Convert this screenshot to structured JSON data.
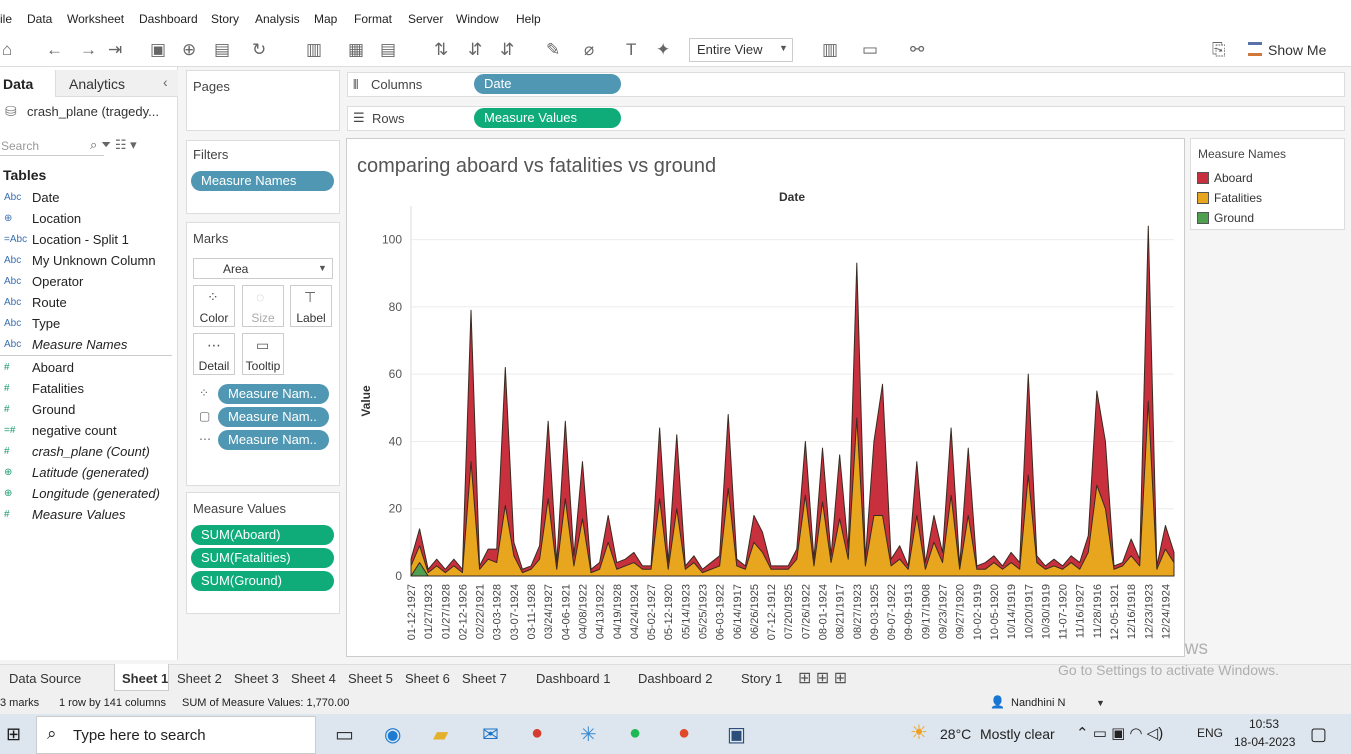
{
  "menu": [
    "ile",
    "Data",
    "Worksheet",
    "Dashboard",
    "Story",
    "Analysis",
    "Map",
    "Format",
    "Server",
    "Window",
    "Help"
  ],
  "toolbar": {
    "view": "Entire View",
    "show_me": "Show Me"
  },
  "data_pane": {
    "tabs": [
      "Data",
      "Analytics"
    ],
    "source": "crash_plane (tragedy...",
    "search": "Search",
    "tables_heading": "Tables",
    "fields": [
      {
        "icon": "Abc",
        "name": "Date"
      },
      {
        "icon": "⊕",
        "name": "Location"
      },
      {
        "icon": "=Abc",
        "name": "Location - Split 1"
      },
      {
        "icon": "Abc",
        "name": "My Unknown Column"
      },
      {
        "icon": "Abc",
        "name": "Operator"
      },
      {
        "icon": "Abc",
        "name": "Route"
      },
      {
        "icon": "Abc",
        "name": "Type"
      },
      {
        "icon": "Abc",
        "name": "Measure Names",
        "italic": true
      },
      {
        "icon": "#",
        "name": "Aboard"
      },
      {
        "icon": "#",
        "name": "Fatalities"
      },
      {
        "icon": "#",
        "name": "Ground"
      },
      {
        "icon": "=#",
        "name": "negative count"
      },
      {
        "icon": "#",
        "name": "crash_plane (Count)",
        "italic": true
      },
      {
        "icon": "⊕",
        "name": "Latitude (generated)",
        "italic": true
      },
      {
        "icon": "⊕",
        "name": "Longitude (generated)",
        "italic": true
      },
      {
        "icon": "#",
        "name": "Measure Values",
        "italic": true
      }
    ]
  },
  "shelves": {
    "pages": "Pages",
    "columns": "Columns",
    "rows": "Rows",
    "columns_pill": "Date",
    "rows_pill": "Measure Values",
    "filters": "Filters",
    "filter_pill": "Measure Names",
    "marks": "Marks",
    "mark_type": "Area",
    "mark_buttons": [
      "Color",
      "Size",
      "Label",
      "Detail",
      "Tooltip"
    ],
    "mark_pills": [
      "Measure Nam..",
      "Measure Nam..",
      "Measure Nam.."
    ],
    "measure_values": "Measure Values",
    "measure_pills": [
      "SUM(Aboard)",
      "SUM(Fatalities)",
      "SUM(Ground)"
    ]
  },
  "legend": {
    "title": "Measure Names"
  },
  "sheet_tabs": [
    "Data Source",
    "Sheet 1",
    "Sheet 2",
    "Sheet 3",
    "Sheet 4",
    "Sheet 5",
    "Sheet 6",
    "Sheet 7",
    "Dashboard 1",
    "Dashboard 2",
    "Story 1"
  ],
  "status": {
    "marks": "3 marks",
    "size": "1 row by 141 columns",
    "sum": "SUM of Measure Values: 1,770.00",
    "user": "Nandhini N"
  },
  "watermark": {
    "title": "Activate Windows",
    "text": "Go to Settings to activate Windows."
  },
  "taskbar": {
    "search": "Type here to search",
    "temp": "28°C",
    "weather": "Mostly clear",
    "lang": "ENG",
    "time": "10:53",
    "date": "18-04-2023"
  },
  "chart_data": {
    "type": "area",
    "title": "comparing aboard vs fatalities vs ground",
    "x_label": "Date",
    "y_label": "Value",
    "categories": [
      "01-12-1927",
      null,
      "01/27/1923",
      null,
      "01/27/1928",
      null,
      "02-12-1926",
      null,
      "02/22/1921",
      null,
      "03-03-1928",
      null,
      "03-07-1924",
      null,
      "03-11-1928",
      null,
      "03/24/1927",
      null,
      "04-06-1921",
      null,
      "04/08/1922",
      null,
      "04/13/1922",
      null,
      "04/19/1928",
      null,
      "04/24/1924",
      null,
      "05-02-1927",
      null,
      "05-12-1920",
      null,
      "05/14/1923",
      null,
      "05/25/1923",
      null,
      "06-03-1922",
      null,
      "06/14/1917",
      null,
      "06/26/1925",
      null,
      "07-12-1912",
      null,
      "07/20/1925",
      null,
      "07/26/1922",
      null,
      "08-01-1924",
      null,
      "08/21/1917",
      null,
      "08/27/1923",
      null,
      "09-03-1925",
      null,
      "09-07-1922",
      null,
      "09-09-1913",
      null,
      "09/17/1908",
      null,
      "09/23/1927",
      null,
      "09/27/1920",
      null,
      "10-02-1919",
      null,
      "10-05-1920",
      null,
      "10/14/1919",
      null,
      "10/20/1917",
      null,
      "10/30/1919",
      null,
      "11-07-1920",
      null,
      "11/16/1927",
      null,
      "11/28/1916",
      null,
      "12-05-1921",
      null,
      "12/16/1918",
      null,
      "12/23/1923",
      null,
      "12/24/1924",
      null
    ],
    "series": [
      {
        "name": "Aboard",
        "color": "#c9303e",
        "values": [
          5,
          14,
          2,
          5,
          2,
          5,
          2,
          79,
          3,
          8,
          8,
          62,
          10,
          2,
          3,
          9,
          46,
          4,
          46,
          6,
          34,
          2,
          4,
          18,
          4,
          5,
          7,
          3,
          3,
          44,
          4,
          42,
          3,
          6,
          2,
          4,
          6,
          48,
          5,
          3,
          18,
          13,
          3,
          3,
          3,
          8,
          40,
          5,
          38,
          6,
          36,
          8,
          93,
          5,
          40,
          57,
          5,
          9,
          3,
          34,
          4,
          18,
          7,
          44,
          3,
          38,
          3,
          4,
          6,
          3,
          7,
          4,
          60,
          6,
          3,
          5,
          3,
          6,
          4,
          12,
          55,
          40,
          3,
          4,
          11,
          5,
          104,
          3,
          15,
          7
        ]
      },
      {
        "name": "Fatalities",
        "color": "#e8a61f",
        "values": [
          3,
          9,
          1,
          3,
          1,
          3,
          1,
          34,
          2,
          5,
          4,
          21,
          6,
          1,
          2,
          5,
          23,
          2,
          23,
          3,
          17,
          1,
          2,
          10,
          2,
          3,
          4,
          2,
          2,
          23,
          2,
          20,
          2,
          4,
          1,
          2,
          3,
          26,
          3,
          2,
          10,
          7,
          2,
          2,
          2,
          5,
          24,
          3,
          22,
          4,
          17,
          5,
          47,
          3,
          18,
          18,
          3,
          5,
          2,
          18,
          2,
          10,
          4,
          24,
          2,
          18,
          2,
          2,
          4,
          2,
          4,
          2,
          30,
          4,
          2,
          3,
          2,
          4,
          2,
          7,
          27,
          20,
          2,
          3,
          6,
          3,
          52,
          2,
          8,
          4
        ]
      },
      {
        "name": "Ground",
        "color": "#4e9f50",
        "values": [
          0,
          4,
          0,
          0,
          0,
          0,
          0,
          0,
          0,
          0,
          0,
          0,
          0,
          0,
          0,
          0,
          0,
          0,
          0,
          0,
          0,
          0,
          0,
          0,
          0,
          0,
          0,
          0,
          0,
          0,
          0,
          0,
          0,
          0,
          0,
          0,
          0,
          0,
          0,
          0,
          0,
          0,
          0,
          0,
          0,
          0,
          0,
          0,
          0,
          0,
          0,
          0,
          0,
          0,
          0,
          0,
          0,
          0,
          0,
          0,
          0,
          0,
          0,
          0,
          0,
          0,
          0,
          0,
          0,
          0,
          0,
          0,
          0,
          0,
          0,
          0,
          0,
          0,
          0,
          0,
          0,
          0,
          0,
          0,
          0,
          0,
          0,
          0,
          0,
          0
        ]
      }
    ],
    "ylim": [
      0,
      110
    ],
    "yticks": [
      0,
      20,
      40,
      60,
      80,
      100
    ],
    "grid": true
  }
}
